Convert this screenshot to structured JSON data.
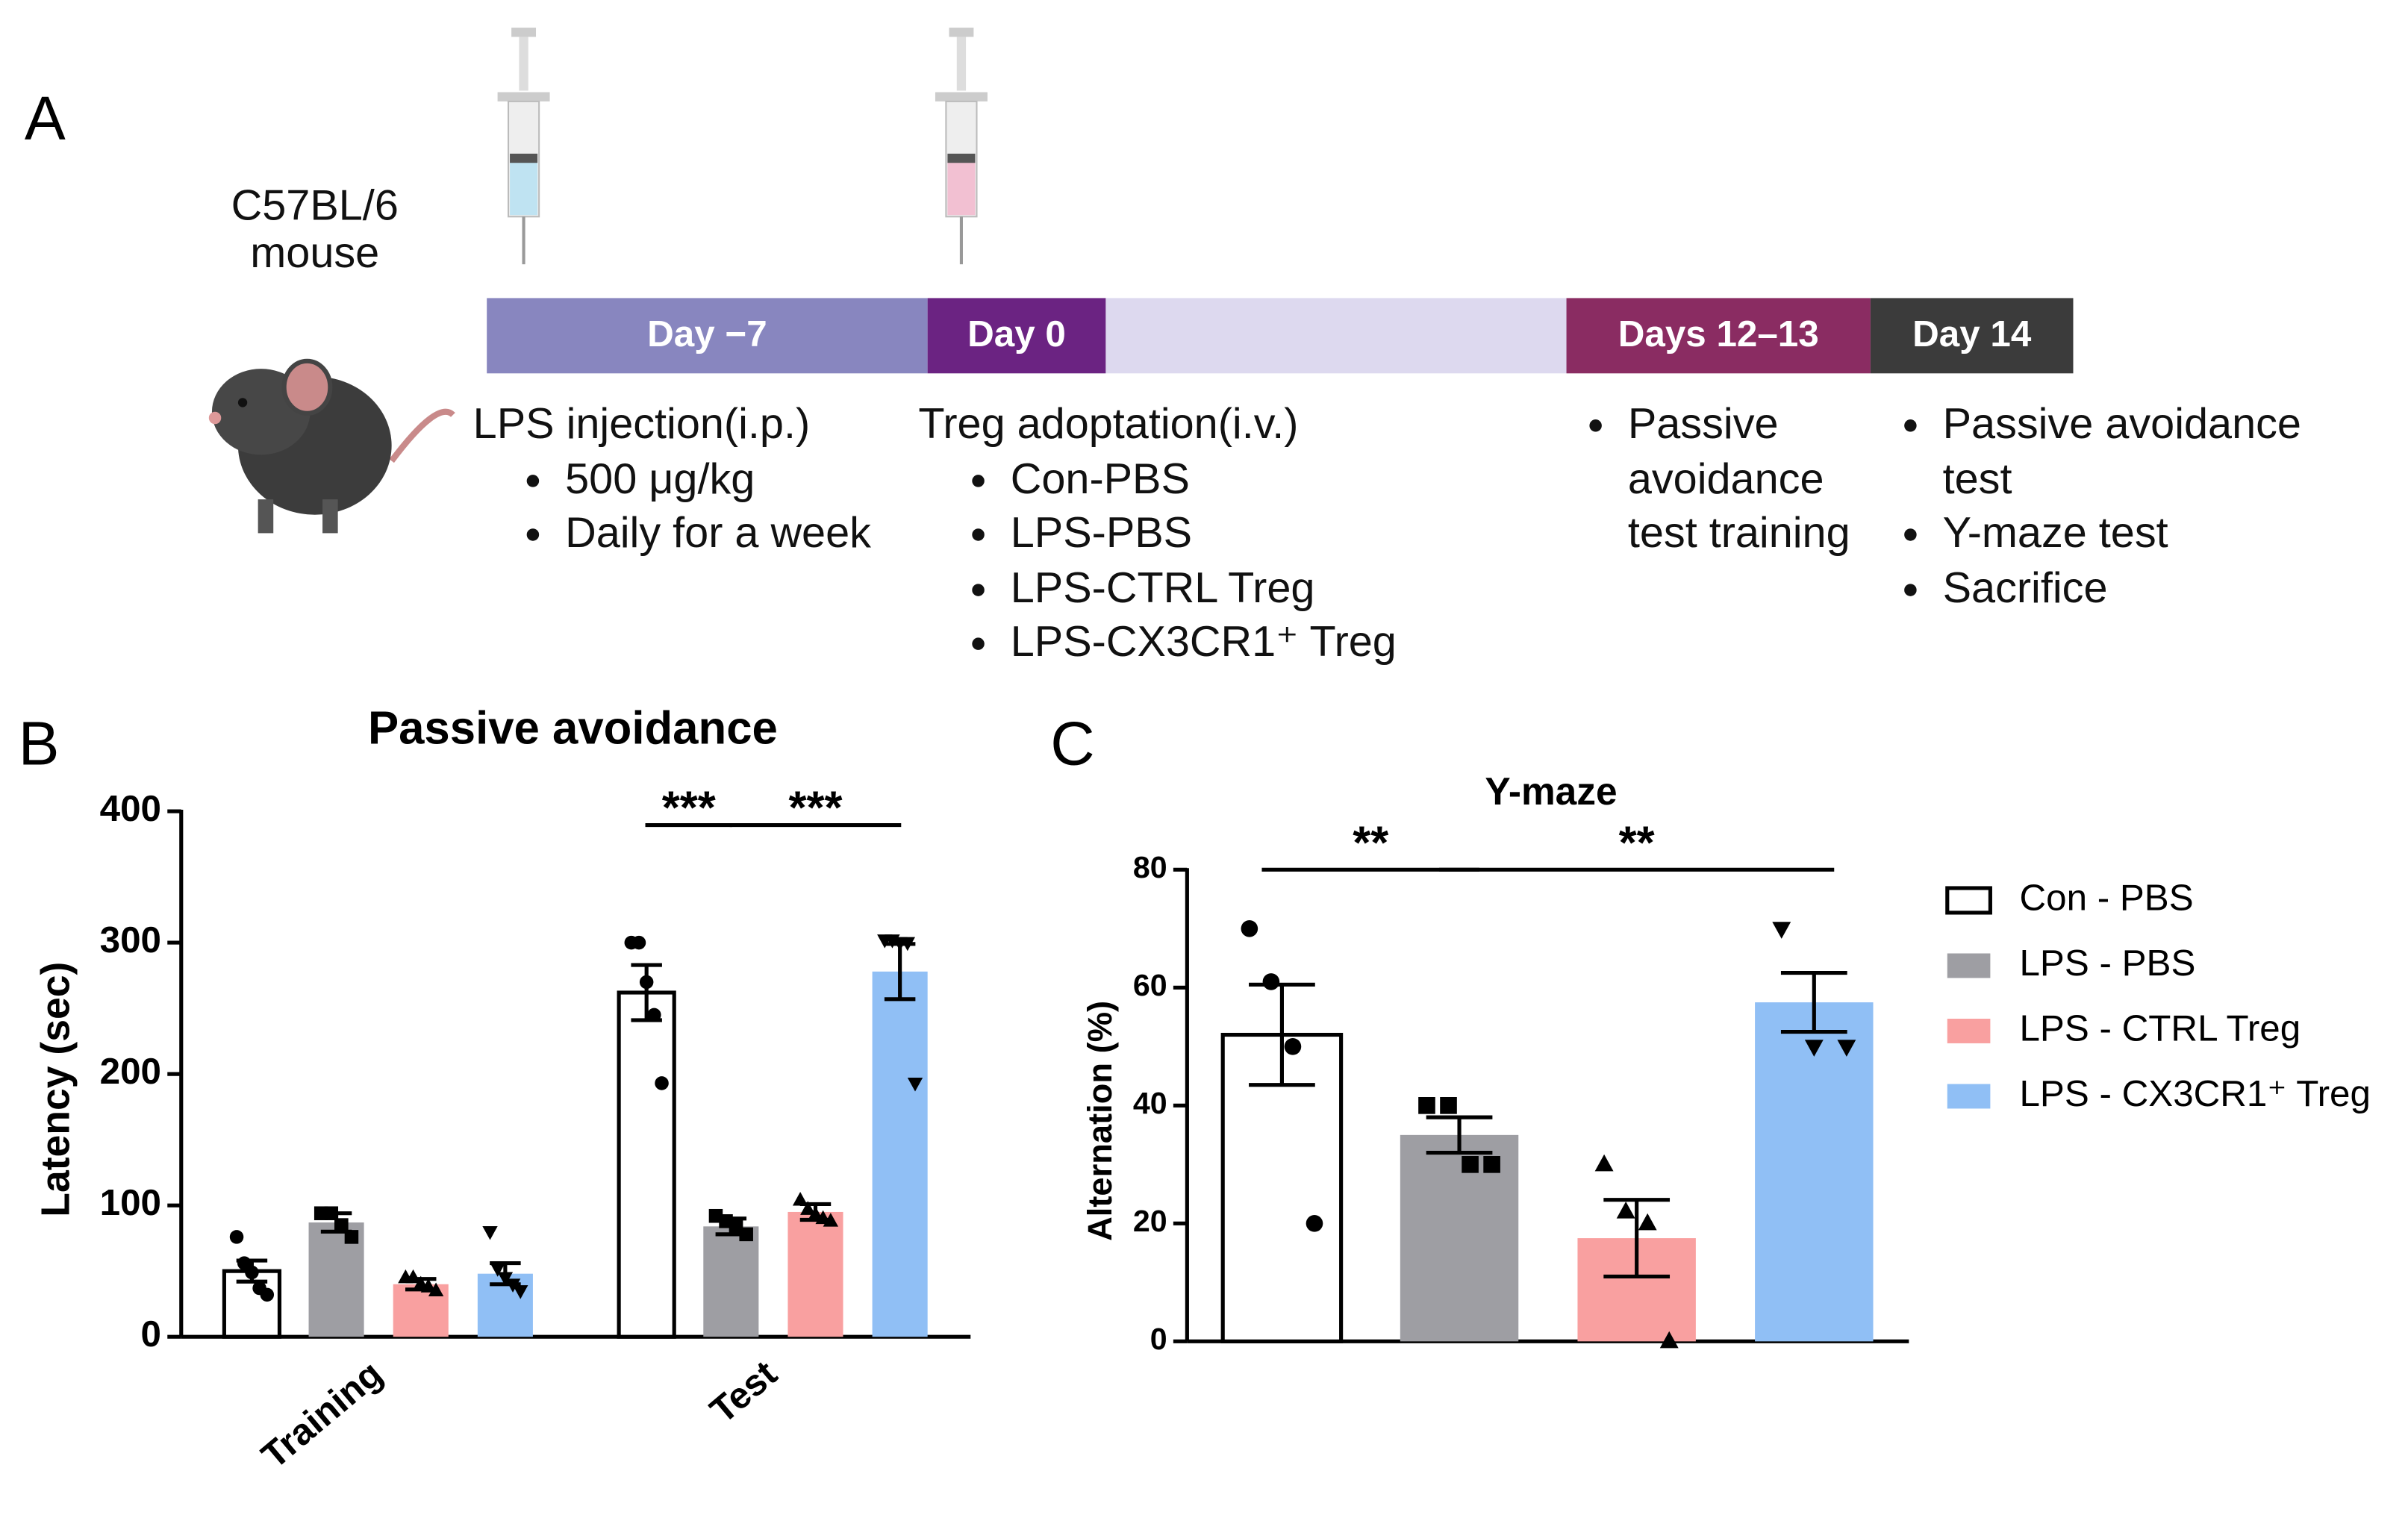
{
  "panel_a": {
    "label": "A",
    "mouse": "C57BL/6 mouse",
    "timeline": [
      {
        "label": "Day −7",
        "color": "#8886bf"
      },
      {
        "label": "Day 0",
        "color": "#6b2382"
      },
      {
        "label": "Days 12–13",
        "color": "#8a2c62"
      },
      {
        "label": "Day 14",
        "color": "#3b3b3b"
      }
    ],
    "notes": [
      {
        "title": "LPS injection(i.p.)",
        "items": [
          "500 μg/kg",
          "Daily for a week"
        ]
      },
      {
        "title": "Treg adoptation(i.v.)",
        "items": [
          "Con-PBS",
          "LPS-PBS",
          "LPS-CTRL Treg",
          "LPS-CX3CR1⁺ Treg"
        ]
      },
      {
        "items": [
          "Passive avoidance test training"
        ]
      },
      {
        "items": [
          "Passive avoidance test",
          "Y-maze test",
          "Sacrifice"
        ]
      }
    ]
  },
  "chart_data": [
    {
      "type": "bar",
      "panel": "B",
      "title": "Passive avoidance",
      "y_label": "Latency (sec)",
      "categories": [
        "Training",
        "Test"
      ],
      "series": [
        {
          "name": "Con - PBS",
          "color": "#ffffff",
          "edgecolor": "#000000",
          "marker": "circle",
          "values": [
            50,
            262
          ],
          "errors": [
            8,
            21
          ],
          "points": [
            [
              76,
              56,
              49,
              37,
              32
            ],
            [
              300,
              300,
              270,
              245,
              193
            ]
          ]
        },
        {
          "name": "LPS - PBS",
          "color": "#9e9ea3",
          "marker": "square",
          "values": [
            87,
            84
          ],
          "errors": [
            7,
            6
          ],
          "points": [
            [
              94,
              94,
              85,
              76
            ],
            [
              92,
              88,
              84,
              78
            ]
          ]
        },
        {
          "name": "LPS - CTRL Treg",
          "color": "#f9a0a0",
          "marker": "triangle",
          "values": [
            40,
            95
          ],
          "errors": [
            4,
            6
          ],
          "points": [
            [
              45,
              45,
              40,
              38,
              35
            ],
            [
              104,
              97,
              93,
              90,
              88
            ]
          ]
        },
        {
          "name": "LPS - CX3CR1⁺ Treg",
          "color": "#90bff5",
          "marker": "triangle-down",
          "values": [
            48,
            278
          ],
          "errors": [
            8,
            21
          ],
          "points": [
            [
              80,
              52,
              45,
              40,
              35
            ],
            [
              302,
              302,
              300,
              300,
              193
            ]
          ]
        }
      ],
      "ylim": [
        0,
        400
      ],
      "yticks": [
        0,
        100,
        200,
        300,
        400
      ],
      "annotations": [
        {
          "label": "***",
          "category": 1,
          "from": 0,
          "to": 1
        },
        {
          "label": "***",
          "category": 1,
          "from": 1,
          "to": 3
        }
      ],
      "legend": false
    },
    {
      "type": "bar",
      "panel": "C",
      "title": "Y-maze",
      "y_label": "Alternation (%)",
      "categories": [
        null
      ],
      "series": [
        {
          "name": "Con - PBS",
          "color": "#ffffff",
          "edgecolor": "#000000",
          "marker": "circle",
          "values": [
            52
          ],
          "errors": [
            8.5
          ],
          "points": [
            [
              70,
              61,
              50,
              20
            ]
          ]
        },
        {
          "name": "LPS - PBS",
          "color": "#9e9ea3",
          "marker": "square",
          "values": [
            35
          ],
          "errors": [
            3
          ],
          "points": [
            [
              40,
              40,
              30,
              30
            ]
          ]
        },
        {
          "name": "LPS - CTRL Treg",
          "color": "#f9a0a0",
          "marker": "triangle",
          "values": [
            17.5
          ],
          "errors": [
            6.5
          ],
          "points": [
            [
              30,
              22,
              20,
              0
            ]
          ]
        },
        {
          "name": "LPS - CX3CR1⁺ Treg",
          "color": "#90bff5",
          "marker": "triangle-down",
          "values": [
            57.5
          ],
          "errors": [
            5
          ],
          "points": [
            [
              70,
              50,
              50
            ]
          ]
        }
      ],
      "ylim": [
        0,
        80
      ],
      "yticks": [
        0,
        20,
        40,
        60,
        80
      ],
      "annotations": [
        {
          "label": "**",
          "category": 0,
          "from": 0,
          "to": 1
        },
        {
          "label": "**",
          "category": 0,
          "from": 1,
          "to": 3
        }
      ],
      "legend": "right"
    }
  ]
}
